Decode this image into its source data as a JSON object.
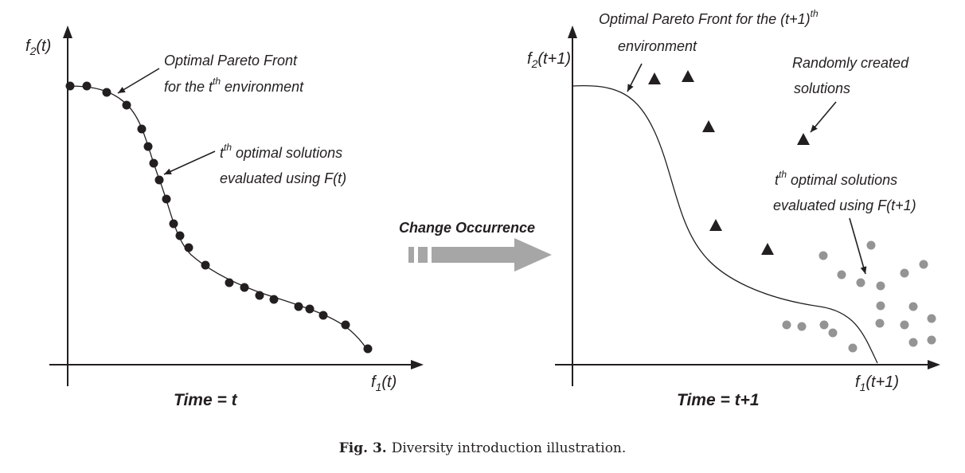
{
  "figure": {
    "caption_prefix": "Fig. 3.",
    "caption_text": "Diversity introduction illustration.",
    "change_label": "Change Occurrence",
    "colors": {
      "ink": "#231f20",
      "grey_dot": "#949494",
      "arrow": "#a6a6a6"
    }
  },
  "left_panel": {
    "y_axis_label": {
      "base": "f",
      "sub": "2",
      "rest": "(t)"
    },
    "x_axis_label": {
      "base": "f",
      "sub": "1",
      "rest": "(t)"
    },
    "time_label": "Time = t",
    "front_label": {
      "line1": "Optimal Pareto Front",
      "line2_pre": "for the t",
      "line2_sup": "th",
      "line2_post": " environment"
    },
    "solutions_label": {
      "line1_pre": "t",
      "line1_sup": "th",
      "line1_post": " optimal solutions",
      "line2": "evaluated using F(t)"
    }
  },
  "right_panel": {
    "y_axis_label": {
      "base": "f",
      "sub": "2",
      "rest": "(t+1)"
    },
    "x_axis_label": {
      "base": "f",
      "sub": "1",
      "rest": "(t+1)"
    },
    "time_label": "Time = t+1",
    "front_label": {
      "line1_pre": "Optimal Pareto Front for the (t+1)",
      "line1_sup": "th",
      "line2": "environment"
    },
    "random_label": {
      "line1": "Randomly created",
      "line2": "solutions"
    },
    "solutions_label": {
      "line1_pre": "t",
      "line1_sup": "th",
      "line1_post": " optimal solutions",
      "line2": "evaluated using F(t+1)"
    }
  }
}
